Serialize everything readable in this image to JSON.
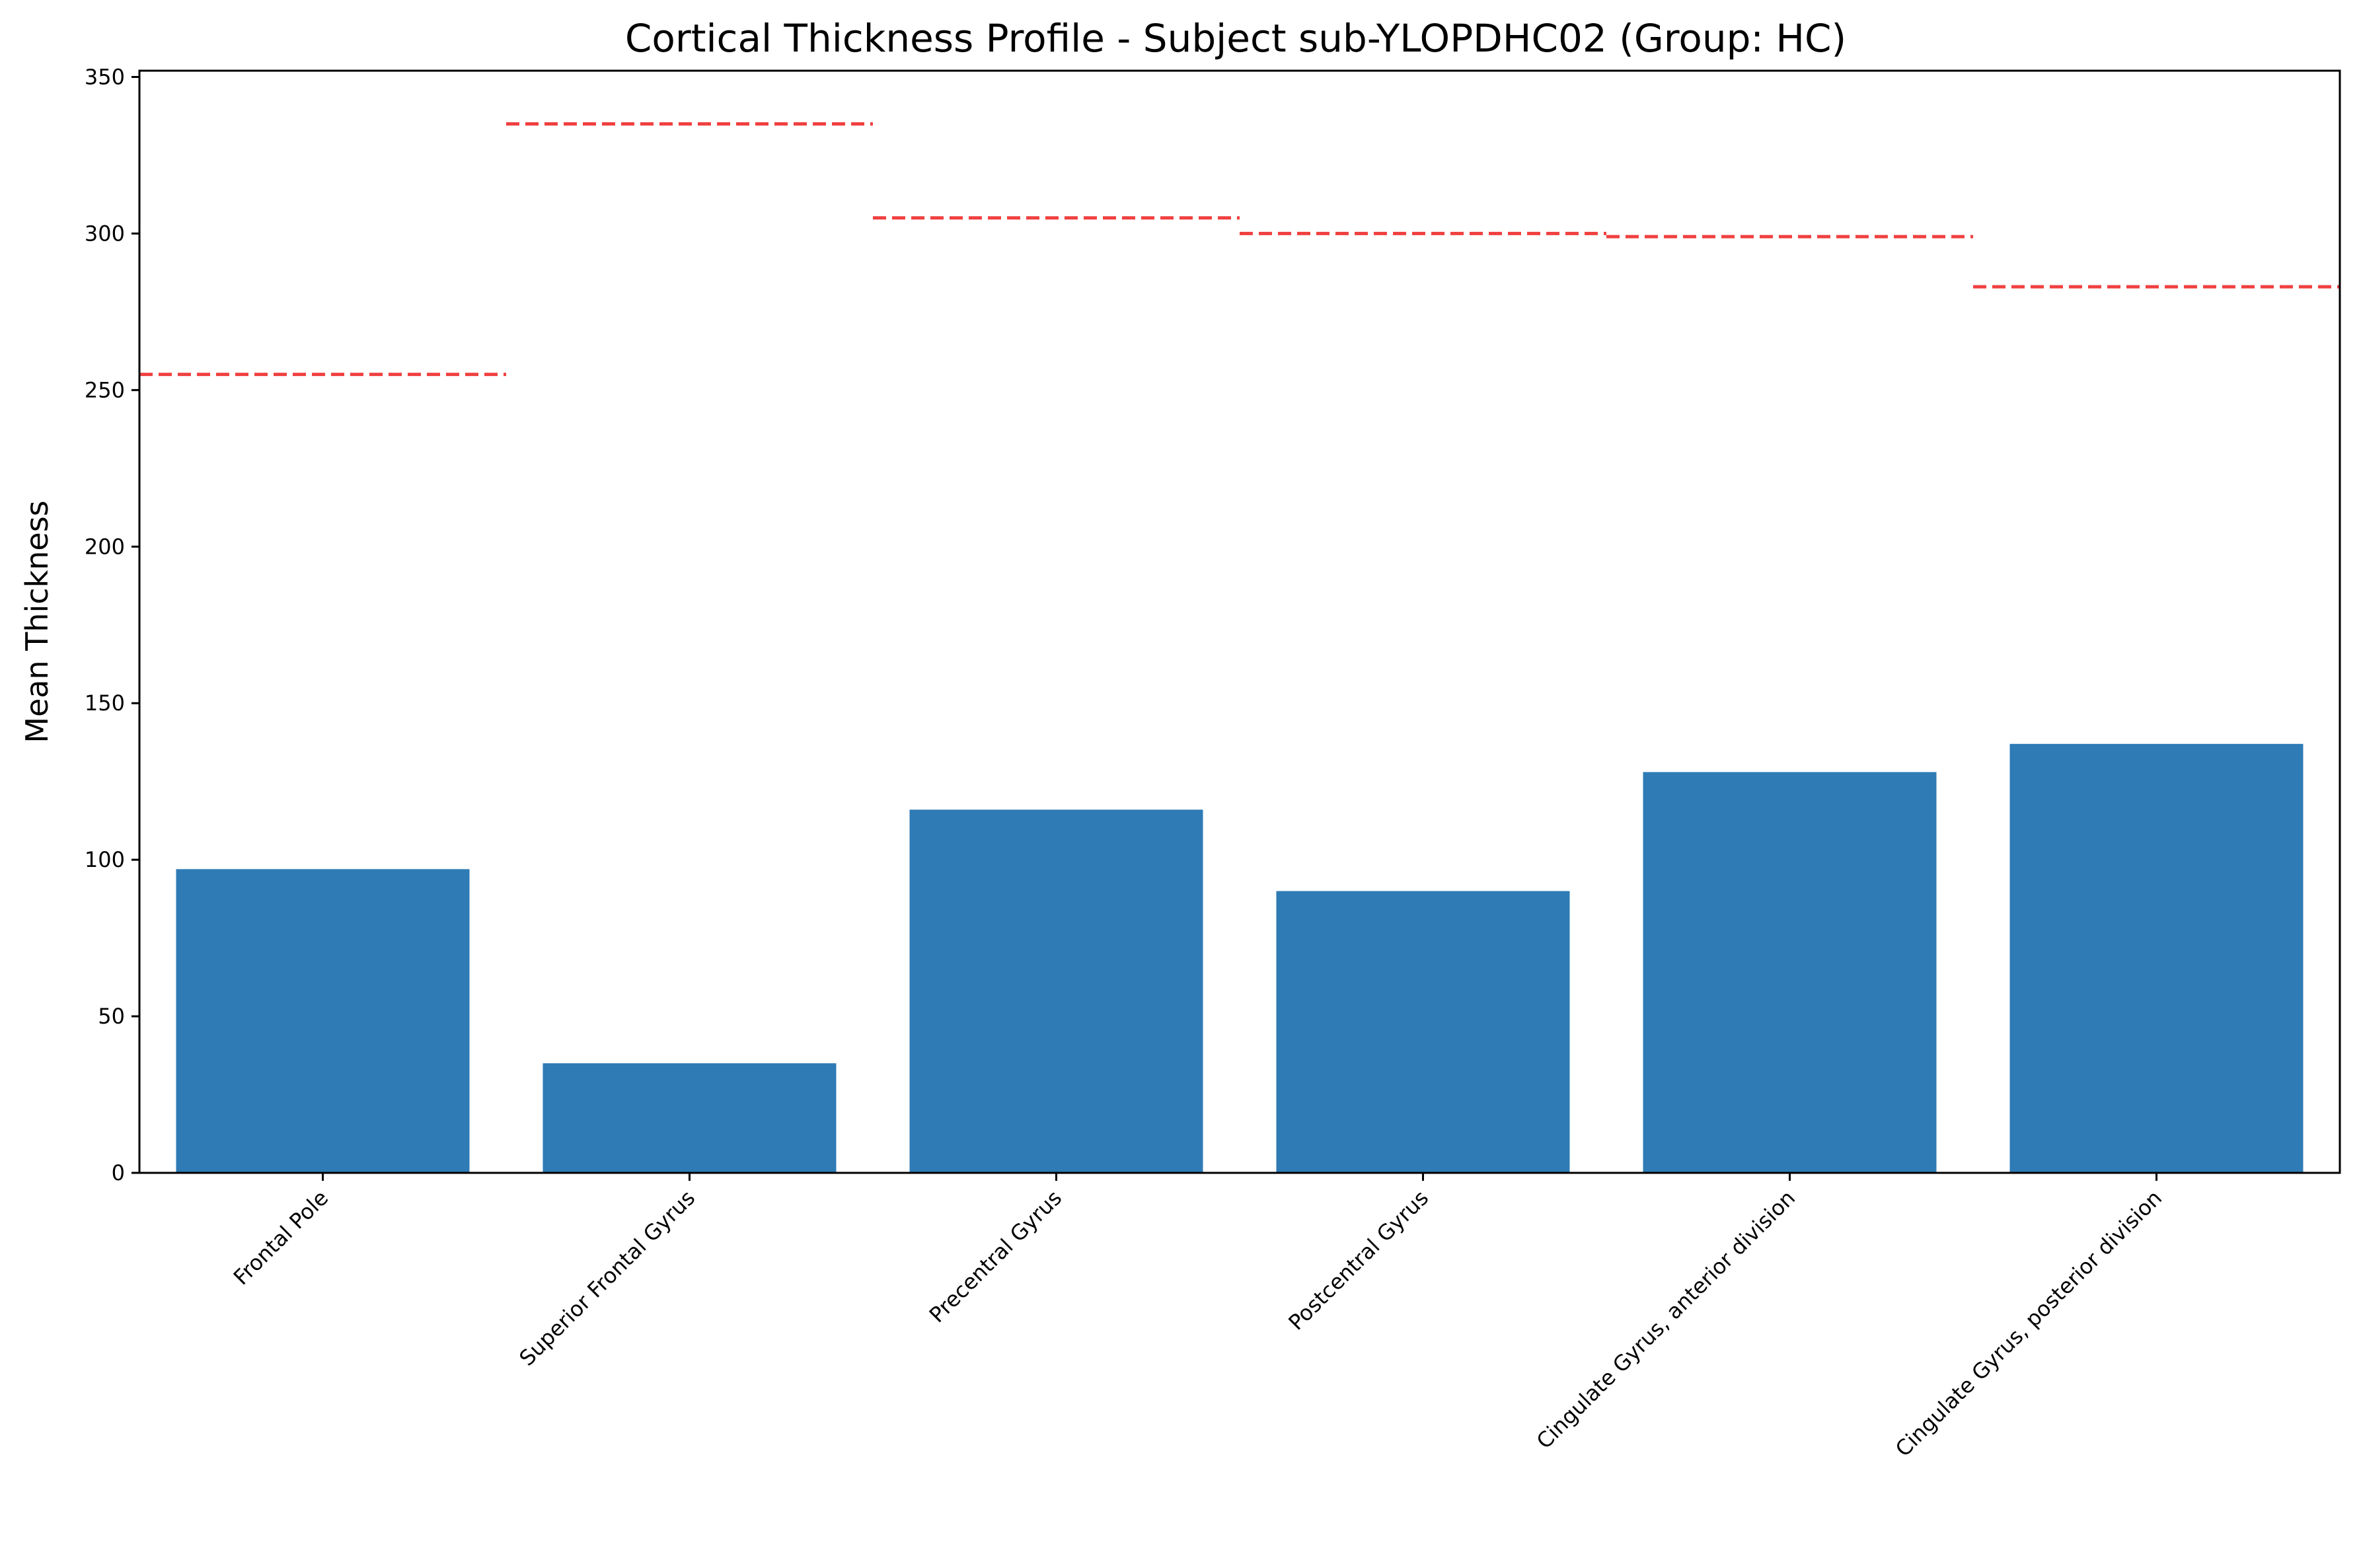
{
  "chart_data": {
    "type": "bar",
    "title": "Cortical Thickness Profile - Subject sub-YLOPDHC02 (Group: HC)",
    "xlabel": "",
    "ylabel": "Mean Thickness",
    "categories": [
      "Frontal Pole",
      "Superior Frontal Gyrus",
      "Precentral Gyrus",
      "Postcentral Gyrus",
      "Cingulate Gyrus, anterior division",
      "Cingulate Gyrus, posterior division"
    ],
    "series": [
      {
        "values": [
          97,
          35,
          116,
          90,
          128,
          137
        ],
        "color": "#2e7bb6"
      }
    ],
    "reference_lines": {
      "values": [
        255,
        335,
        305,
        300,
        299,
        283
      ],
      "color": "#f04040",
      "style": "dashed"
    },
    "ylim": [
      0,
      352
    ],
    "yticks": [
      0,
      50,
      100,
      150,
      200,
      250,
      300,
      350
    ],
    "grid": false,
    "legend": "none"
  }
}
